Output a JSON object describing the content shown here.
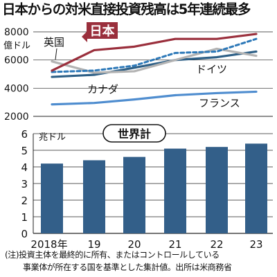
{
  "headline": "日本からの対米直接投資残高は5年連続最多",
  "note_line1": "(注)投資主体を最終的に所有、またはコントロールしている",
  "note_line2": "事業体が所在する国を基準とした集計値。出所は米商務省",
  "colors": {
    "japan": "#9a2f3c",
    "uk": "#b3b3b3",
    "germany": "#2c78b8",
    "canada": "#2d5f86",
    "france": "#4f8dcf",
    "bars": "#335f89",
    "text": "#111111",
    "grid": "#222222"
  },
  "chart_data": [
    {
      "type": "line",
      "ylabel": "億ドル",
      "ylim": [
        2000,
        8000
      ],
      "yticks": [
        "2000",
        "4000",
        "6000",
        "8000"
      ],
      "x": [
        "2018",
        "2019",
        "2020",
        "2021",
        "2022",
        "2023"
      ],
      "grid": true,
      "series": [
        {
          "name": "日本",
          "values": [
            5250,
            6700,
            6950,
            7500,
            7500,
            7850
          ],
          "style": "solid"
        },
        {
          "name": "英国",
          "values": [
            5900,
            5100,
            5200,
            6000,
            6800,
            6300
          ],
          "style": "solid"
        },
        {
          "name": "ドイツ",
          "values": [
            5150,
            5250,
            5600,
            6500,
            6600,
            7500
          ],
          "style": "dashed"
        },
        {
          "name": "カナダ",
          "values": [
            4800,
            4950,
            5450,
            6000,
            6200,
            6600
          ],
          "style": "solid"
        },
        {
          "name": "フランス",
          "values": [
            2850,
            2950,
            3200,
            3500,
            3650,
            3750
          ],
          "style": "solid"
        }
      ]
    },
    {
      "type": "bar",
      "title": "世界計",
      "ylabel": "兆ドル",
      "ylim": [
        0,
        6
      ],
      "yticks": [
        "0",
        "1",
        "2",
        "3",
        "4",
        "5",
        "6"
      ],
      "categories": [
        "2018年",
        "19",
        "20",
        "21",
        "22",
        "23"
      ],
      "values": [
        4.2,
        4.4,
        4.6,
        5.1,
        5.2,
        5.4
      ],
      "grid": true
    }
  ]
}
